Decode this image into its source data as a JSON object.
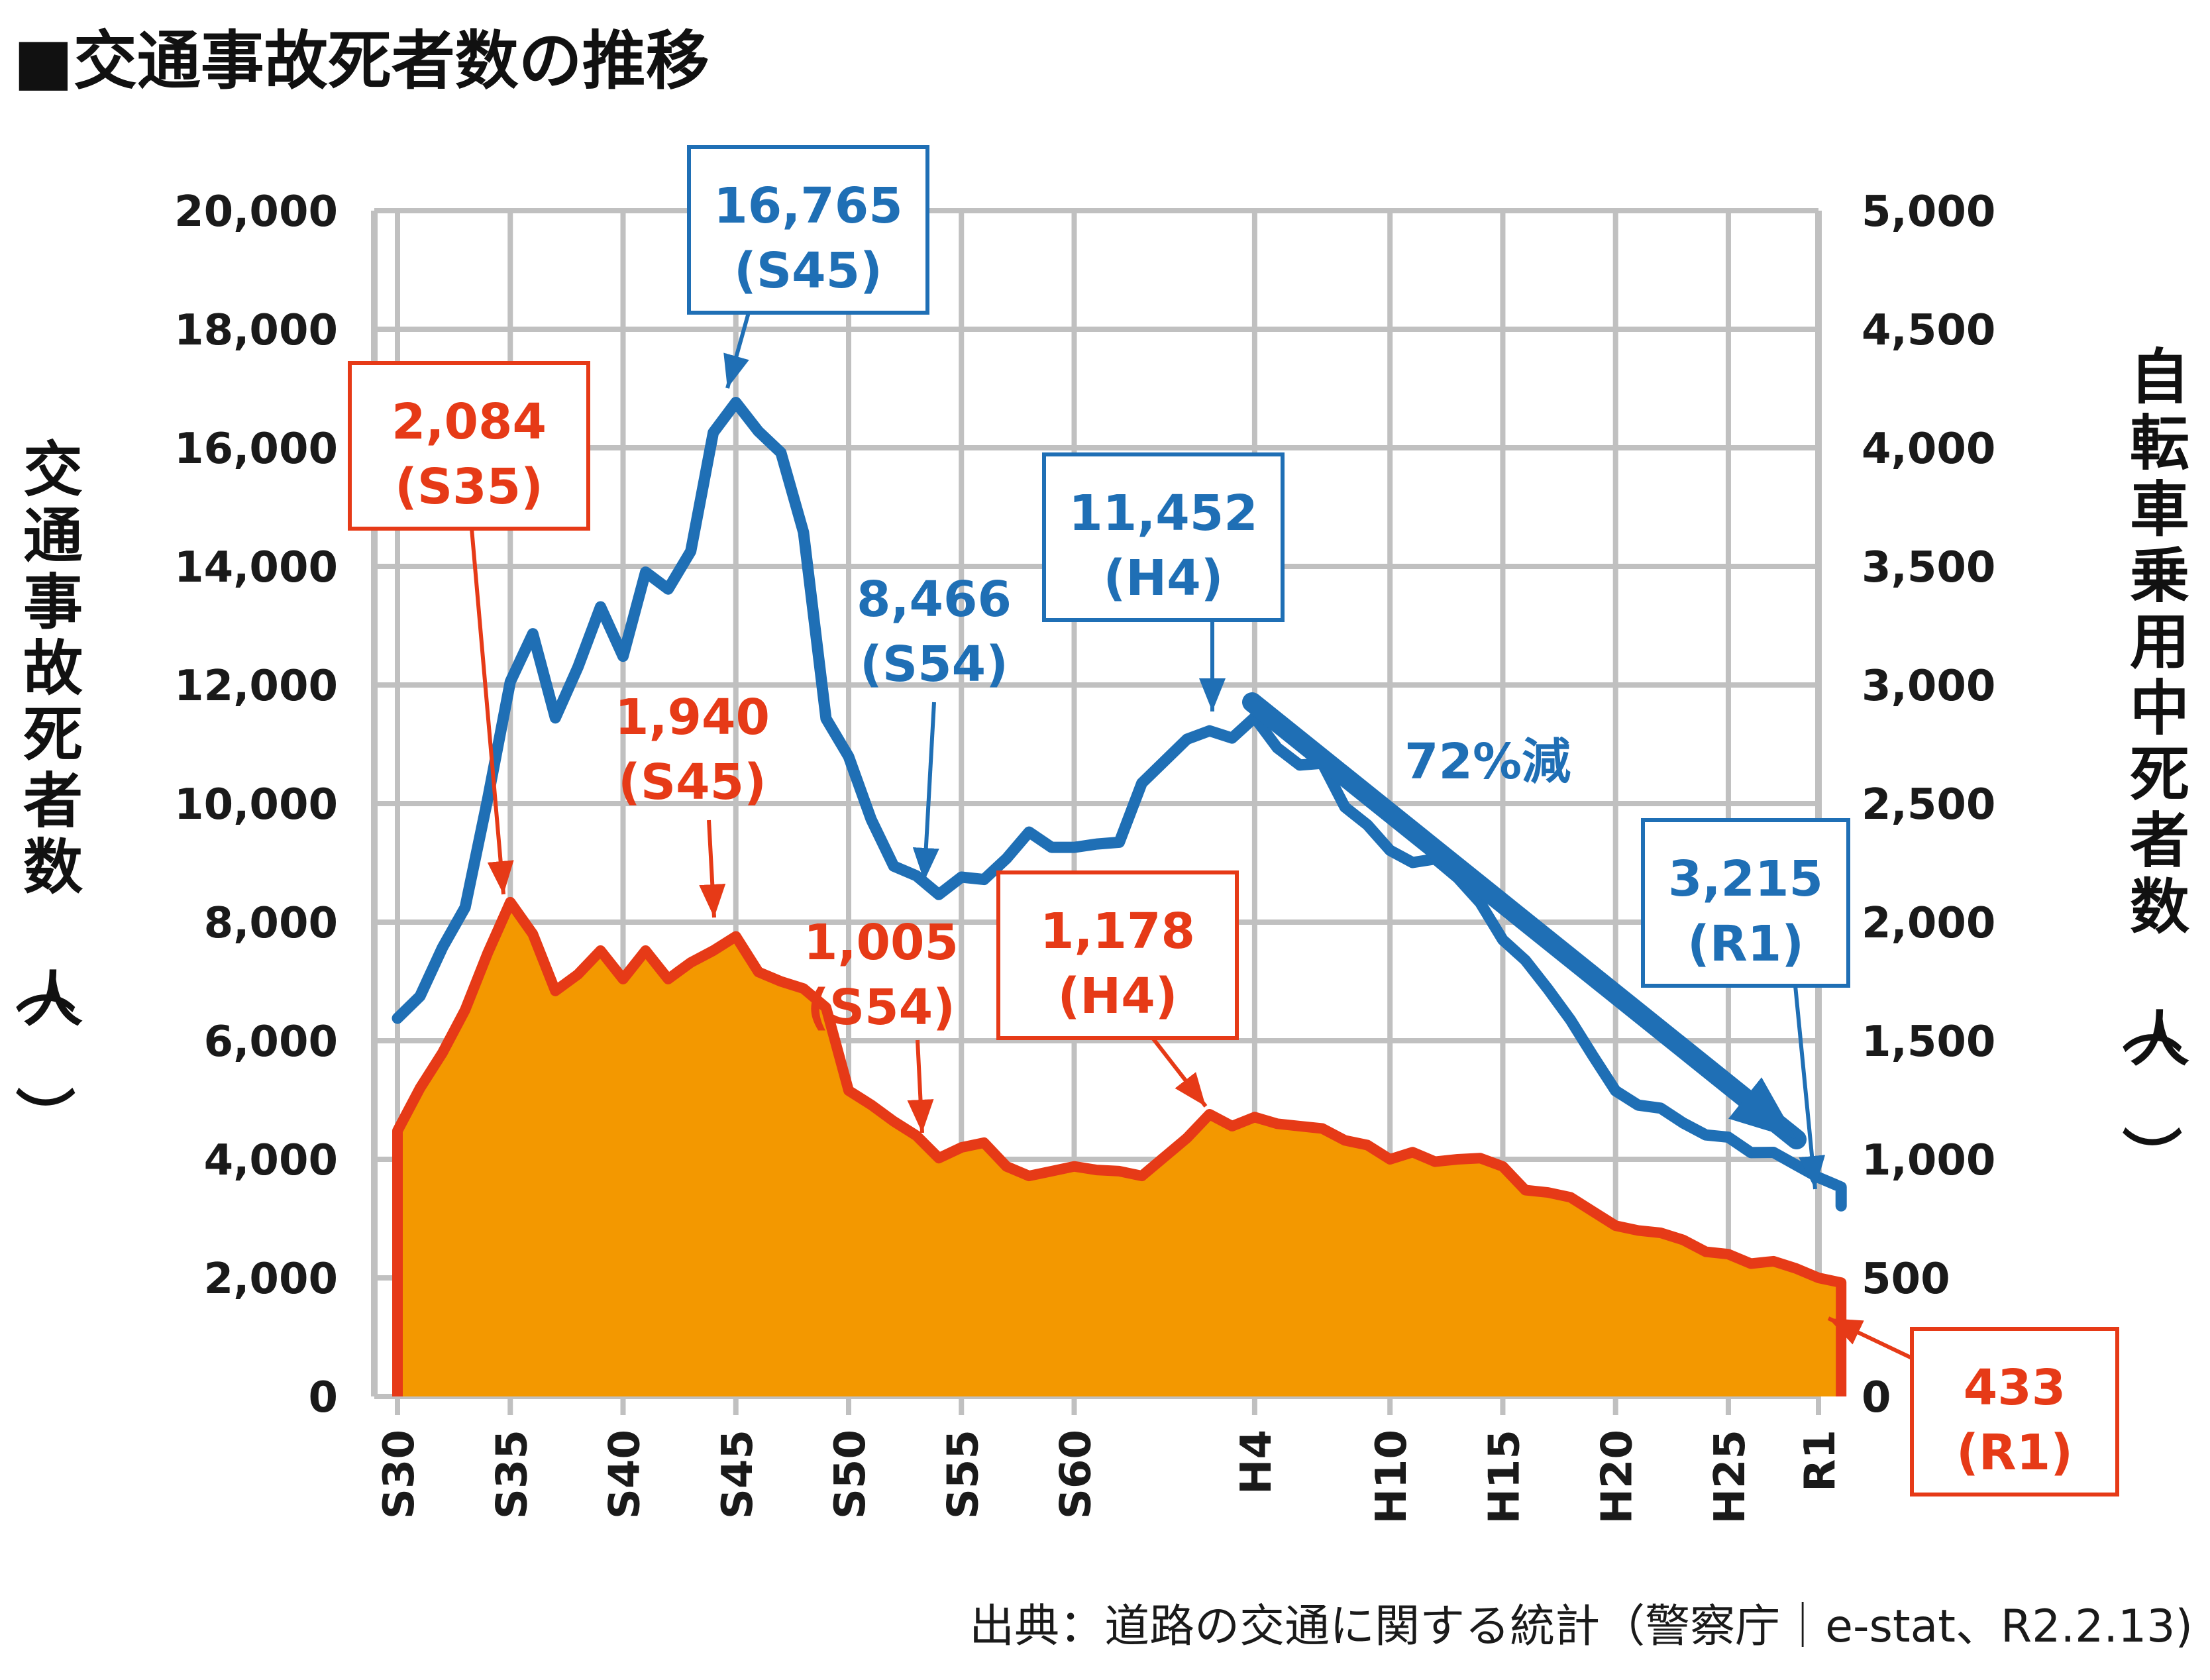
{
  "title": "■交通事故死者数の推移",
  "source": "出典：道路の交通に関する統計（警察庁｜e-stat、R2.2.13)",
  "colors": {
    "blue": "#1f6fb5",
    "red": "#e63a17",
    "fill": "#f39800",
    "grid": "#c0c0c0"
  },
  "chart_data": {
    "type": "line",
    "title": "■交通事故死者数の推移",
    "left_axis": {
      "label": "交通事故死者数（人）",
      "range": [
        0,
        20000
      ],
      "ticks": [
        "0",
        "2,000",
        "4,000",
        "6,000",
        "8,000",
        "10,000",
        "12,000",
        "14,000",
        "16,000",
        "18,000",
        "20,000"
      ]
    },
    "right_axis": {
      "label": "自転車乗用中死者数（人）",
      "range": [
        0,
        5000
      ],
      "ticks": [
        "0",
        "500",
        "1,000",
        "1,500",
        "2,000",
        "2,500",
        "3,000",
        "3,500",
        "4,000",
        "4,500",
        "5,000"
      ]
    },
    "x_ticks": [
      "S30",
      "S35",
      "S40",
      "S45",
      "S50",
      "S55",
      "S60",
      "H4",
      "H10",
      "H15",
      "H20",
      "H25",
      "R1"
    ],
    "grid": true,
    "series": [
      {
        "axis": "left",
        "color": "#1f6fb5",
        "style": "line",
        "x": [
          "S30",
          "S31",
          "S32",
          "S33",
          "S34",
          "S35",
          "S36",
          "S37",
          "S38",
          "S39",
          "S40",
          "S41",
          "S42",
          "S43",
          "S44",
          "S45",
          "S46",
          "S47",
          "S48",
          "S49",
          "S50",
          "S51",
          "S52",
          "S53",
          "S54",
          "S55",
          "S56",
          "S57",
          "S58",
          "S59",
          "S60",
          "S61",
          "S62",
          "S63",
          "H1",
          "H2",
          "H3",
          "H4",
          "H5",
          "H6",
          "H7",
          "H8",
          "H9",
          "H10",
          "H11",
          "H12",
          "H13",
          "H14",
          "H15",
          "H16",
          "H17",
          "H18",
          "H19",
          "H20",
          "H21",
          "H22",
          "H23",
          "H24",
          "H25",
          "H26",
          "H27",
          "H28",
          "H29",
          "H30",
          "R1"
        ],
        "values": [
          6379,
          6751,
          7575,
          8248,
          10079,
          12055,
          12865,
          11445,
          12301,
          13318,
          12484,
          13904,
          13618,
          14256,
          16257,
          16765,
          16278,
          15918,
          14574,
          11432,
          10792,
          9734,
          8945,
          8783,
          8466,
          8760,
          8719,
          9073,
          9520,
          9262,
          9261,
          9317,
          9347,
          10344,
          11086,
          11227,
          11105,
          11452,
          10942,
          10649,
          10679,
          9942,
          9640,
          9211,
          9006,
          9066,
          8747,
          8326,
          7702,
          7358,
          6871,
          6352,
          5744,
          5155,
          4914,
          4863,
          4612,
          4411,
          4373,
          4113,
          4117,
          3904,
          3694,
          3532,
          3215
        ]
      },
      {
        "axis": "right",
        "color": "#e63a17",
        "fill": "#f39800",
        "style": "area",
        "x": [
          "S30",
          "S31",
          "S32",
          "S33",
          "S34",
          "S35",
          "S36",
          "S37",
          "S38",
          "S39",
          "S40",
          "S41",
          "S42",
          "S43",
          "S44",
          "S45",
          "S46",
          "S47",
          "S48",
          "S49",
          "S50",
          "S51",
          "S52",
          "S53",
          "S54",
          "S55",
          "S56",
          "S57",
          "S58",
          "S59",
          "S60",
          "S61",
          "S62",
          "S63",
          "H1",
          "H2",
          "H3",
          "H4",
          "H5",
          "H6",
          "H7",
          "H8",
          "H9",
          "H10",
          "H11",
          "H12",
          "H13",
          "H14",
          "H15",
          "H16",
          "H17",
          "H18",
          "H19",
          "H20",
          "H21",
          "H22",
          "H23",
          "H24",
          "H25",
          "H26",
          "H27",
          "H28",
          "H29",
          "H30",
          "R1"
        ],
        "values": [
          1120,
          1300,
          1450,
          1630,
          1870,
          2084,
          1950,
          1710,
          1780,
          1880,
          1760,
          1880,
          1760,
          1830,
          1880,
          1940,
          1790,
          1750,
          1720,
          1640,
          1290,
          1230,
          1160,
          1100,
          1005,
          1050,
          1070,
          970,
          930,
          950,
          970,
          955,
          950,
          930,
          1090,
          1190,
          1140,
          1178,
          1150,
          1140,
          1130,
          1080,
          1060,
          1000,
          1030,
          990,
          1000,
          1005,
          970,
          870,
          860,
          840,
          780,
          720,
          700,
          690,
          660,
          610,
          600,
          560,
          570,
          540,
          500,
          480,
          433
        ]
      }
    ],
    "annotations": [
      {
        "label": "16,765",
        "sub": "(S45)",
        "color": "#1f6fb5"
      },
      {
        "label": "8,466",
        "sub": "(S54)",
        "color": "#1f6fb5"
      },
      {
        "label": "11,452",
        "sub": "(H4)",
        "color": "#1f6fb5"
      },
      {
        "label": "3,215",
        "sub": "(R1)",
        "color": "#1f6fb5"
      },
      {
        "label": "2,084",
        "sub": "(S35)",
        "color": "#e63a17"
      },
      {
        "label": "1,940",
        "sub": "(S45)",
        "color": "#e63a17"
      },
      {
        "label": "1,005",
        "sub": "(S54)",
        "color": "#e63a17"
      },
      {
        "label": "1,178",
        "sub": "(H4)",
        "color": "#e63a17"
      },
      {
        "label": "433",
        "sub": "(R1)",
        "color": "#e63a17"
      }
    ],
    "trend_label": "72%減"
  }
}
